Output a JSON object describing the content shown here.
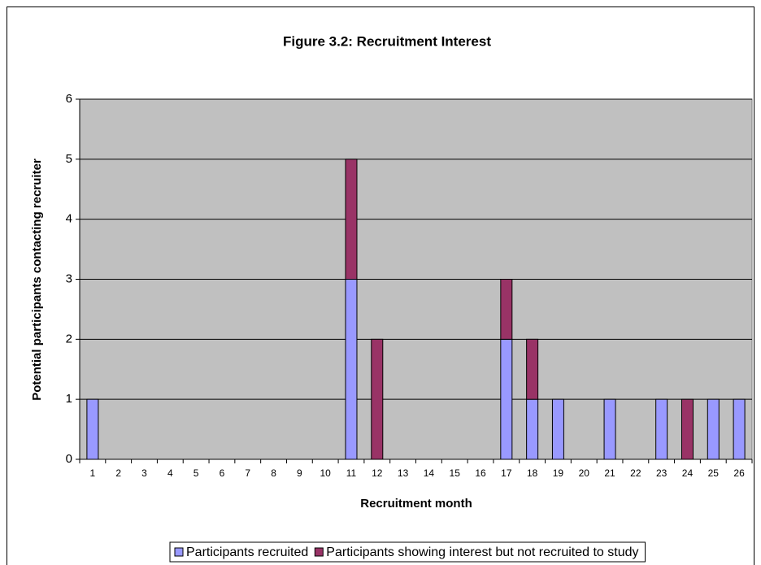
{
  "chart_data": {
    "type": "stacked_bar",
    "title": "Figure 3.2: Recruitment Interest",
    "x_label": "Recruitment month",
    "y_label": "Potential participants contacting recruiter",
    "categories": [
      "1",
      "2",
      "3",
      "4",
      "5",
      "6",
      "7",
      "8",
      "9",
      "10",
      "11",
      "12",
      "13",
      "14",
      "15",
      "16",
      "17",
      "18",
      "19",
      "20",
      "21",
      "22",
      "23",
      "24",
      "25",
      "26"
    ],
    "series": [
      {
        "name": "Participants recruited",
        "color": "#9999ff",
        "values": [
          1,
          0,
          0,
          0,
          0,
          0,
          0,
          0,
          0,
          0,
          3,
          0,
          0,
          0,
          0,
          0,
          2,
          1,
          1,
          0,
          1,
          0,
          1,
          0,
          1,
          1
        ]
      },
      {
        "name": "Participants showing interest but not recruited to study",
        "color": "#993366",
        "values": [
          0,
          0,
          0,
          0,
          0,
          0,
          0,
          0,
          0,
          0,
          2,
          2,
          0,
          0,
          0,
          0,
          1,
          1,
          0,
          0,
          0,
          0,
          0,
          1,
          0,
          0
        ]
      }
    ],
    "ylim": [
      0,
      6
    ],
    "yticks": [
      0,
      1,
      2,
      3,
      4,
      5,
      6
    ],
    "grid": true,
    "legend": "bottom"
  }
}
